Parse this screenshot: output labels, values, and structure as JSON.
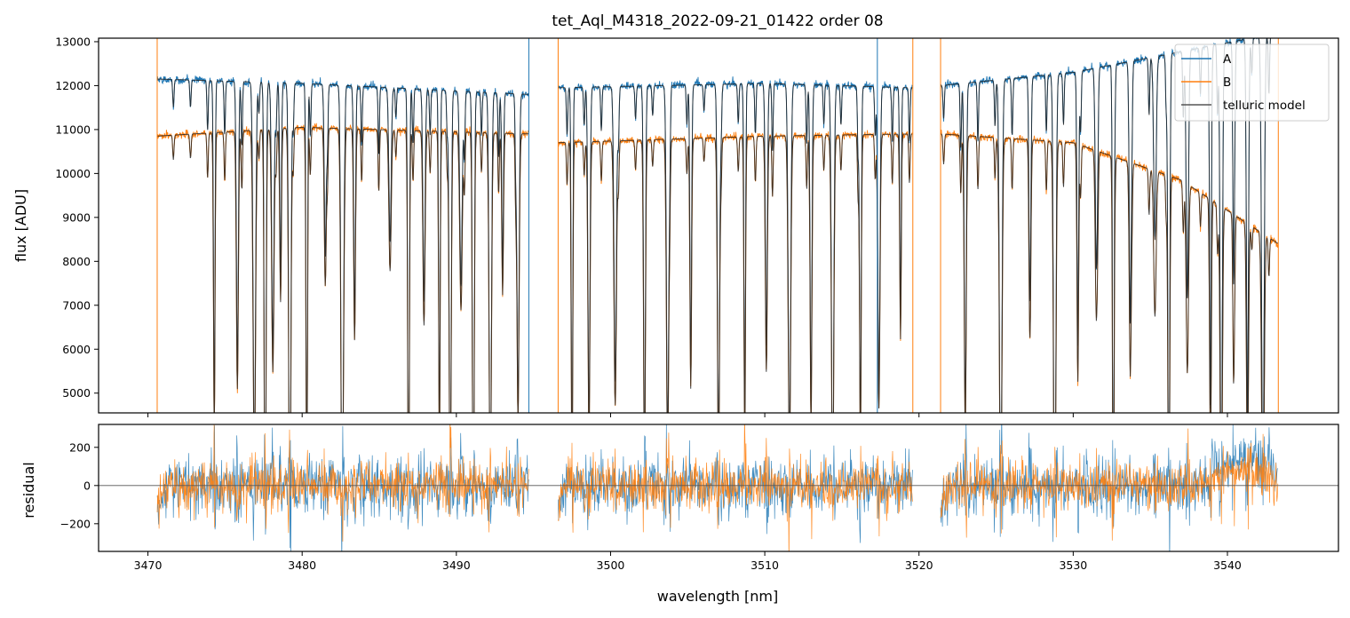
{
  "chart_data": [
    {
      "type": "line",
      "title": "tet_Aql_M4318_2022-09-21_01422  order 08",
      "xlabel": "",
      "ylabel": "flux [ADU]",
      "xlim": [
        3466.8,
        3547.2
      ],
      "ylim": [
        4550,
        13080
      ],
      "xticks": [
        3470,
        3480,
        3490,
        3500,
        3510,
        3520,
        3530,
        3540
      ],
      "yticks": [
        5000,
        6000,
        7000,
        8000,
        9000,
        10000,
        11000,
        12000,
        13000
      ],
      "segments": [
        [
          3470.6,
          3494.7
        ],
        [
          3496.6,
          3519.6
        ],
        [
          3521.4,
          3543.3
        ]
      ],
      "legend_position": "top-right",
      "grid": false,
      "series": [
        {
          "name": "A",
          "color": "#1f77b4",
          "continuum_anchors": {
            "x": [
              3470.6,
              3480,
              3494.7,
              3496.6,
              3510,
              3519.6,
              3521.4,
              3530,
              3543.3
            ],
            "y": [
              12150,
              12050,
              11800,
              11950,
              12050,
              11950,
              12000,
              12300,
              13200
            ]
          }
        },
        {
          "name": "B",
          "color": "#ff7f0e",
          "continuum_anchors": {
            "x": [
              3470.6,
              3480,
              3494.7,
              3496.6,
              3510,
              3519.6,
              3521.4,
              3530,
              3537,
              3543.3
            ],
            "y": [
              10850,
              11050,
              10900,
              10700,
              10850,
              10900,
              10900,
              10700,
              9850,
              8400
            ]
          }
        },
        {
          "name": "telluric model",
          "color": "#222222"
        }
      ],
      "absorption_lines_nm": [
        3474.3,
        3475.8,
        3476.9,
        3477.6,
        3478.1,
        3478.6,
        3479.2,
        3480.3,
        3481.5,
        3482.6,
        3483.4,
        3485.7,
        3486.9,
        3487.9,
        3488.9,
        3489.6,
        3490.3,
        3491.1,
        3492.2,
        3493.0,
        3494.0,
        3497.5,
        3498.6,
        3500.3,
        3502.2,
        3503.7,
        3505.2,
        3507.0,
        3508.7,
        3510.1,
        3511.6,
        3513.0,
        3514.4,
        3516.2,
        3517.4,
        3518.8,
        3523.0,
        3525.3,
        3527.2,
        3528.8,
        3530.3,
        3531.5,
        3532.6,
        3533.7,
        3535.3,
        3536.2,
        3537.4,
        3538.9,
        3539.6,
        3540.4,
        3541.3,
        3542.3
      ]
    },
    {
      "type": "line",
      "title": "",
      "xlabel": "wavelength [nm]",
      "ylabel": "residual",
      "xlim": [
        3466.8,
        3547.2
      ],
      "ylim": [
        -345,
        320
      ],
      "xticks": [
        3470,
        3480,
        3490,
        3500,
        3510,
        3520,
        3530,
        3540
      ],
      "yticks": [
        -200,
        0,
        200
      ],
      "reference_line": 0,
      "grid": false,
      "series": [
        {
          "name": "A",
          "color": "#1f77b4",
          "approx_std": 70
        },
        {
          "name": "B",
          "color": "#ff7f0e",
          "approx_std": 60
        }
      ]
    }
  ]
}
